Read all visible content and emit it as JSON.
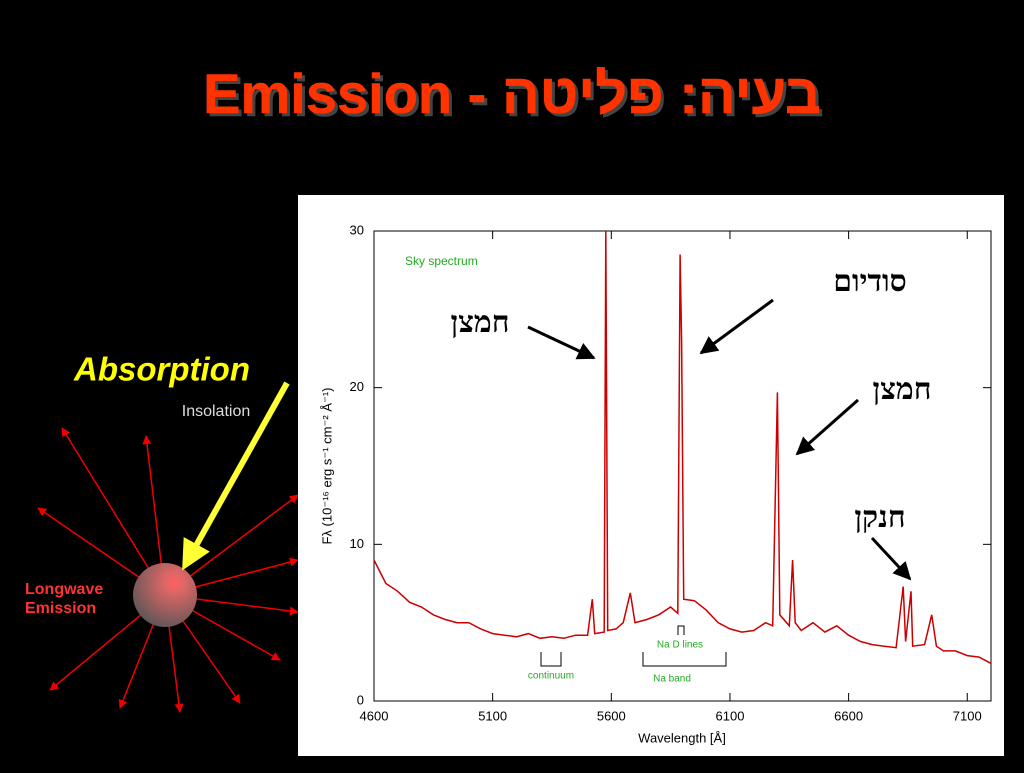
{
  "title": "Emission - בעיה: פליטה",
  "diagram": {
    "absorption": "Absorption",
    "insolation": "Insolation",
    "longwave": [
      "Longwave",
      "Emission"
    ]
  },
  "chart_data": {
    "type": "line",
    "xlabel": "Wavelength [Å]",
    "ylabel": "Fλ (10⁻¹⁶ erg s⁻¹ cm⁻² Å⁻¹)",
    "annotations": [
      "Sky spectrum",
      "Na D lines",
      "continuum",
      "Na band",
      "חמצן",
      "סודיום",
      "חמצן",
      "חנקן"
    ],
    "color": "#cc0000",
    "xlim": [
      4600,
      7200
    ],
    "ylim": [
      0,
      30
    ],
    "xticks": [
      4600,
      5100,
      5600,
      6100,
      6600,
      7100
    ],
    "yticks": [
      0,
      10,
      20,
      30
    ],
    "x": [
      4600,
      4650,
      4700,
      4750,
      4800,
      4850,
      4900,
      4950,
      5000,
      5050,
      5100,
      5150,
      5200,
      5250,
      5300,
      5350,
      5400,
      5450,
      5500,
      5520,
      5530,
      5570,
      5577,
      5585,
      5620,
      5650,
      5680,
      5700,
      5750,
      5800,
      5850,
      5880,
      5890,
      5896,
      5905,
      5950,
      6000,
      6050,
      6100,
      6150,
      6200,
      6250,
      6280,
      6300,
      6310,
      6350,
      6364,
      6375,
      6400,
      6450,
      6500,
      6550,
      6600,
      6650,
      6700,
      6750,
      6800,
      6830,
      6840,
      6863,
      6870,
      6920,
      6950,
      6970,
      7000,
      7050,
      7100,
      7150,
      7200
    ],
    "values": [
      9.0,
      7.5,
      7.0,
      6.3,
      6.0,
      5.5,
      5.2,
      5.0,
      5.0,
      4.6,
      4.3,
      4.2,
      4.1,
      4.3,
      4.0,
      4.1,
      4.0,
      4.2,
      4.2,
      6.5,
      4.3,
      4.4,
      30,
      4.5,
      4.6,
      5.0,
      6.9,
      5.0,
      5.2,
      5.5,
      6.0,
      5.6,
      28.5,
      23,
      6.5,
      6.4,
      5.8,
      5.0,
      4.6,
      4.4,
      4.5,
      5.0,
      4.8,
      19.7,
      5.5,
      4.8,
      9.0,
      5.0,
      4.5,
      5.0,
      4.4,
      4.8,
      4.2,
      3.8,
      3.6,
      3.5,
      3.4,
      7.3,
      3.8,
      7.0,
      3.5,
      3.6,
      5.5,
      3.5,
      3.2,
      3.2,
      2.9,
      2.8,
      2.4
    ]
  }
}
